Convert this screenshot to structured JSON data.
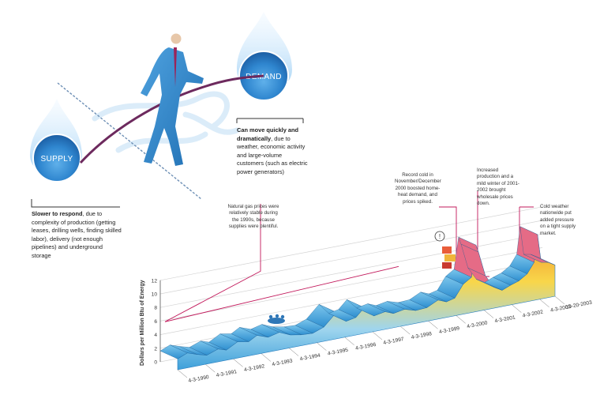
{
  "supply": {
    "label": "SUPPLY",
    "bold": "Slower to respond",
    "text": ", due to complexity of production (getting leases, drilling wells, finding skilled labor), delivery (not enough pipelines) and underground storage"
  },
  "demand": {
    "label": "DEMAND",
    "bold": "Can move quickly and dramatically",
    "text": ", due to weather, economic activity and large-volume customers (such as electric power generators)"
  },
  "annotations": [
    {
      "key": "stable",
      "text": "Natural gas prices were relatively stable during the 1990s, because supplies were plentiful."
    },
    {
      "key": "cold2000",
      "text": "Record cold in November/December 2000 boosted home-heat demand, and prices spiked."
    },
    {
      "key": "mild2001",
      "text": "Increased production and a mild winter of 2001-2002 brought wholesale prices down."
    },
    {
      "key": "cold2003",
      "text": "Cold weather nationwide put added pressure on a tight supply market."
    }
  ],
  "colors": {
    "drop": "#2f86cf",
    "figure_suit": "#2e84c8",
    "rope": "#6d2a5e",
    "ribbon_low": "#4aa8dd",
    "ribbon_high": "#f39c2b",
    "leader": "#c2185b"
  },
  "chart_data": {
    "type": "area",
    "title": "",
    "ylabel": "Dollars per Million Btu of Energy",
    "xlabel": "",
    "ylim": [
      0,
      12
    ],
    "y_ticks": [
      0,
      2,
      4,
      6,
      8,
      10,
      12
    ],
    "grid": true,
    "x_ticks": [
      "4-3-1990",
      "4-3-1991",
      "4-3-1992",
      "4-3-1993",
      "4-3-1994",
      "4-3-1995",
      "4-3-1996",
      "4-3-1997",
      "4-3-1998",
      "4-3-1999",
      "4-3-2000",
      "4-3-2001",
      "4-3-2002",
      "4-3-2003",
      "10-20-2003"
    ],
    "series": [
      {
        "values": [
          {
            "x": 1990.25,
            "y": 1.6
          },
          {
            "x": 1990.6,
            "y": 2.2
          },
          {
            "x": 1990.95,
            "y": 1.7
          },
          {
            "x": 1991.3,
            "y": 1.3
          },
          {
            "x": 1991.7,
            "y": 1.9
          },
          {
            "x": 1992.0,
            "y": 1.5
          },
          {
            "x": 1992.4,
            "y": 2.4
          },
          {
            "x": 1992.8,
            "y": 2.1
          },
          {
            "x": 1993.1,
            "y": 2.8
          },
          {
            "x": 1993.5,
            "y": 2.2
          },
          {
            "x": 1993.9,
            "y": 2.6
          },
          {
            "x": 1994.3,
            "y": 1.9
          },
          {
            "x": 1994.7,
            "y": 1.6
          },
          {
            "x": 1995.1,
            "y": 1.5
          },
          {
            "x": 1995.5,
            "y": 2.1
          },
          {
            "x": 1995.95,
            "y": 3.9
          },
          {
            "x": 1996.3,
            "y": 2.3
          },
          {
            "x": 1996.65,
            "y": 2.6
          },
          {
            "x": 1996.95,
            "y": 3.8
          },
          {
            "x": 1997.3,
            "y": 2.3
          },
          {
            "x": 1997.7,
            "y": 2.6
          },
          {
            "x": 1998.0,
            "y": 2.1
          },
          {
            "x": 1998.4,
            "y": 2.4
          },
          {
            "x": 1998.8,
            "y": 1.9
          },
          {
            "x": 1999.2,
            "y": 2.0
          },
          {
            "x": 1999.6,
            "y": 2.8
          },
          {
            "x": 1999.9,
            "y": 2.3
          },
          {
            "x": 2000.2,
            "y": 2.6
          },
          {
            "x": 2000.5,
            "y": 4.4
          },
          {
            "x": 2000.8,
            "y": 5.2
          },
          {
            "x": 2000.96,
            "y": 9.8
          },
          {
            "x": 2001.05,
            "y": 8.7
          },
          {
            "x": 2001.3,
            "y": 5.0
          },
          {
            "x": 2001.6,
            "y": 3.1
          },
          {
            "x": 2001.9,
            "y": 2.4
          },
          {
            "x": 2002.2,
            "y": 2.9
          },
          {
            "x": 2002.5,
            "y": 3.3
          },
          {
            "x": 2002.8,
            "y": 4.1
          },
          {
            "x": 2003.05,
            "y": 5.6
          },
          {
            "x": 2003.17,
            "y": 9.6
          },
          {
            "x": 2003.3,
            "y": 5.4
          },
          {
            "x": 2003.55,
            "y": 5.2
          },
          {
            "x": 2003.8,
            "y": 4.6
          }
        ]
      }
    ]
  }
}
